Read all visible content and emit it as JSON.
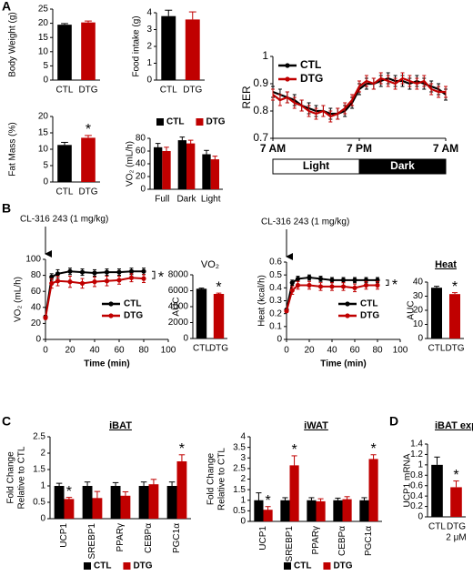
{
  "panel_labels": [
    "A",
    "B",
    "C",
    "D"
  ],
  "chart_data": [
    {
      "type": "bar",
      "y_label": "Body Weight (g)",
      "categories": [
        "CTL",
        "DTG"
      ],
      "values": [
        19.5,
        20.3
      ],
      "errors": [
        0.4,
        0.5
      ],
      "colors": [
        "#000000",
        "#c00000"
      ],
      "ylim": [
        0,
        25
      ],
      "yticks": [
        0,
        5,
        10,
        15,
        20,
        25
      ]
    },
    {
      "type": "bar",
      "y_label": "Food intake (g)",
      "categories": [
        "CTL",
        "DTG"
      ],
      "values": [
        3.8,
        3.6
      ],
      "errors": [
        0.35,
        0.45
      ],
      "colors": [
        "#000000",
        "#c00000"
      ],
      "ylim": [
        0,
        4
      ],
      "yticks": [
        0,
        1,
        2,
        3,
        4
      ]
    },
    {
      "type": "line",
      "y_label": "RER",
      "x": [
        0,
        1,
        2,
        3,
        4,
        5,
        6,
        7,
        8,
        9,
        10,
        11,
        12,
        13,
        14,
        15,
        16,
        17,
        18,
        19,
        20,
        21,
        22,
        23,
        24
      ],
      "xlim": [
        0,
        24
      ],
      "xticks": [
        {
          "value": 0,
          "label": "7 AM"
        },
        {
          "value": 12,
          "label": "7 PM"
        },
        {
          "value": 24,
          "label": "7 AM"
        }
      ],
      "ylim": [
        0.7,
        1.0
      ],
      "yticks": [
        0.7,
        0.8,
        0.9,
        1
      ],
      "series": [
        {
          "name": "CTL",
          "color": "#000000",
          "values": [
            0.87,
            0.86,
            0.85,
            0.84,
            0.82,
            0.81,
            0.8,
            0.8,
            0.79,
            0.79,
            0.8,
            0.83,
            0.88,
            0.9,
            0.9,
            0.91,
            0.92,
            0.91,
            0.91,
            0.9,
            0.91,
            0.9,
            0.89,
            0.88,
            0.86
          ],
          "errors": [
            0.02,
            0.02,
            0.02,
            0.02,
            0.02,
            0.02,
            0.02,
            0.02,
            0.02,
            0.02,
            0.02,
            0.02,
            0.02,
            0.02,
            0.02,
            0.02,
            0.02,
            0.02,
            0.02,
            0.02,
            0.02,
            0.02,
            0.02,
            0.02,
            0.02
          ]
        },
        {
          "name": "DTG",
          "color": "#c00000",
          "values": [
            0.86,
            0.84,
            0.85,
            0.83,
            0.82,
            0.8,
            0.79,
            0.8,
            0.78,
            0.79,
            0.81,
            0.84,
            0.89,
            0.91,
            0.9,
            0.92,
            0.91,
            0.9,
            0.92,
            0.91,
            0.9,
            0.91,
            0.88,
            0.87,
            0.87
          ],
          "errors": [
            0.02,
            0.02,
            0.02,
            0.02,
            0.02,
            0.02,
            0.02,
            0.02,
            0.02,
            0.02,
            0.02,
            0.02,
            0.02,
            0.02,
            0.02,
            0.02,
            0.02,
            0.02,
            0.02,
            0.02,
            0.02,
            0.02,
            0.02,
            0.02,
            0.02
          ]
        }
      ],
      "phases": [
        {
          "label": "Light",
          "start": 0,
          "end": 12,
          "color": "#ffffff"
        },
        {
          "label": "Dark",
          "start": 12,
          "end": 24,
          "color": "#000000"
        }
      ]
    },
    {
      "type": "bar",
      "y_label": "Fat Mass (%)",
      "categories": [
        "CTL",
        "DTG"
      ],
      "values": [
        11.3,
        13.5
      ],
      "errors": [
        0.8,
        0.7
      ],
      "colors": [
        "#000000",
        "#c00000"
      ],
      "significant": [
        false,
        true
      ],
      "significance_mark": "*",
      "ylim": [
        0,
        20
      ],
      "yticks": [
        0,
        5,
        10,
        15,
        20
      ]
    },
    {
      "type": "grouped_bar",
      "y_label": "VO₂ (mL/h)",
      "categories": [
        "Full",
        "Dark",
        "Light"
      ],
      "ylim": [
        0,
        80
      ],
      "yticks": [
        0,
        20,
        40,
        60,
        80
      ],
      "series": [
        {
          "name": "CTL",
          "color": "#000000",
          "values": [
            66,
            77,
            55
          ],
          "errors": [
            6,
            5,
            6
          ]
        },
        {
          "name": "DTG",
          "color": "#c00000",
          "values": [
            60,
            72,
            47
          ],
          "errors": [
            6,
            5,
            5
          ]
        }
      ]
    },
    {
      "type": "line",
      "y_label": "VO₂ (mL/h)",
      "x_label": "Time (min)",
      "x": [
        0,
        5,
        10,
        20,
        30,
        40,
        50,
        60,
        70,
        80
      ],
      "xlim": [
        0,
        100
      ],
      "xticks": [
        0,
        20,
        40,
        60,
        80,
        100
      ],
      "ylim": [
        0,
        100
      ],
      "yticks": [
        0,
        20,
        40,
        60,
        80,
        100
      ],
      "series": [
        {
          "name": "CTL",
          "color": "#000000",
          "values": [
            28,
            78,
            82,
            85,
            84,
            83,
            84,
            84,
            85,
            85
          ],
          "errors": [
            2,
            4,
            5,
            4,
            4,
            4,
            4,
            4,
            4,
            4
          ]
        },
        {
          "name": "DTG",
          "color": "#c00000",
          "values": [
            27,
            70,
            73,
            72,
            70,
            72,
            73,
            74,
            77,
            76
          ],
          "errors": [
            2,
            6,
            6,
            7,
            6,
            6,
            6,
            5,
            5,
            5
          ]
        }
      ],
      "injection": {
        "label": "CL-316 243 (1 mg/kg)",
        "x": 0
      },
      "significant": true,
      "significance_mark": "*"
    },
    {
      "type": "bar",
      "title": "VO₂",
      "y_label": "AUC",
      "categories": [
        "CTL",
        "DTG"
      ],
      "values": [
        6250,
        5600
      ],
      "errors": [
        80,
        100
      ],
      "colors": [
        "#000000",
        "#c00000"
      ],
      "significant": [
        false,
        true
      ],
      "significance_mark": "*",
      "ylim": [
        0,
        8000
      ],
      "yticks": [
        0,
        2000,
        4000,
        6000,
        8000
      ]
    },
    {
      "type": "line",
      "y_label": "Heat (kcal/h)",
      "x_label": "Time (min)",
      "x": [
        0,
        5,
        10,
        20,
        30,
        40,
        50,
        60,
        70,
        80
      ],
      "xlim": [
        0,
        100
      ],
      "xticks": [
        0,
        20,
        40,
        60,
        80,
        100
      ],
      "ylim": [
        0,
        0.6
      ],
      "yticks": [
        0,
        0.1,
        0.2,
        0.3,
        0.4,
        0.5,
        0.6
      ],
      "series": [
        {
          "name": "CTL",
          "color": "#000000",
          "values": [
            0.23,
            0.44,
            0.47,
            0.48,
            0.47,
            0.46,
            0.46,
            0.46,
            0.46,
            0.46
          ],
          "errors": [
            0.01,
            0.02,
            0.02,
            0.02,
            0.02,
            0.02,
            0.02,
            0.02,
            0.02,
            0.02
          ]
        },
        {
          "name": "DTG",
          "color": "#c00000",
          "values": [
            0.22,
            0.38,
            0.42,
            0.42,
            0.41,
            0.41,
            0.41,
            0.4,
            0.42,
            0.42
          ],
          "errors": [
            0.01,
            0.03,
            0.03,
            0.03,
            0.03,
            0.03,
            0.03,
            0.03,
            0.03,
            0.03
          ]
        }
      ],
      "injection": {
        "label": "CL-316 243 (1 mg/kg)",
        "x": 0
      },
      "significant": true,
      "significance_mark": "*"
    },
    {
      "type": "bar",
      "title": "Heat",
      "y_label": "AUC",
      "categories": [
        "CTL",
        "DTG"
      ],
      "values": [
        36,
        31.5
      ],
      "errors": [
        1,
        1
      ],
      "colors": [
        "#000000",
        "#c00000"
      ],
      "significant": [
        false,
        true
      ],
      "significance_mark": "*",
      "ylim": [
        0,
        40
      ],
      "yticks": [
        0,
        10,
        20,
        30,
        40
      ]
    },
    {
      "type": "grouped_bar",
      "title": "iBAT",
      "y_label": [
        "Fold Change",
        "Relative to CTL"
      ],
      "categories": [
        "UCP1",
        "SREBP1",
        "PPARγ",
        "CEBPα",
        "PGC1α"
      ],
      "ylim": [
        0,
        2.5
      ],
      "yticks": [
        0,
        0.5,
        1,
        1.5,
        2,
        2.5
      ],
      "significance_mark": "*",
      "series": [
        {
          "name": "CTL",
          "color": "#000000",
          "values": [
            1,
            1,
            1,
            1,
            1
          ],
          "errors": [
            0.08,
            0.12,
            0.1,
            0.12,
            0.12
          ]
        },
        {
          "name": "DTG",
          "color": "#c00000",
          "values": [
            0.6,
            0.63,
            0.7,
            1.05,
            1.75
          ],
          "errors": [
            0.05,
            0.2,
            0.12,
            0.15,
            0.2
          ],
          "significant": [
            true,
            false,
            false,
            false,
            true
          ]
        }
      ]
    },
    {
      "type": "grouped_bar",
      "title": "iWAT",
      "y_label": [
        "Fold Change",
        "Relative to CTL"
      ],
      "categories": [
        "UCP1",
        "SREBP1",
        "PPARγ",
        "CEBPα",
        "PGC1α"
      ],
      "ylim": [
        0,
        4
      ],
      "yticks": [
        0,
        0.5,
        1,
        1.5,
        2,
        2.5,
        3,
        3.5,
        4
      ],
      "significance_mark": "*",
      "series": [
        {
          "name": "CTL",
          "color": "#000000",
          "values": [
            1,
            1,
            1,
            1,
            1
          ],
          "errors": [
            0.35,
            0.12,
            0.12,
            0.1,
            0.12
          ]
        },
        {
          "name": "DTG",
          "color": "#c00000",
          "values": [
            0.55,
            2.65,
            0.95,
            1.05,
            2.95
          ],
          "errors": [
            0.15,
            0.45,
            0.12,
            0.12,
            0.2
          ],
          "significant": [
            true,
            true,
            false,
            false,
            true
          ]
        }
      ]
    },
    {
      "type": "bar",
      "title": "iBAT explant",
      "y_label": "UCP1 mRNA",
      "categories": [
        "CTL",
        "DTG"
      ],
      "annotation": "2 μM",
      "values": [
        1.0,
        0.57
      ],
      "errors": [
        0.15,
        0.12
      ],
      "colors": [
        "#000000",
        "#c00000"
      ],
      "significant": [
        false,
        true
      ],
      "significance_mark": "*",
      "ylim": [
        0,
        1.4
      ],
      "yticks": [
        0,
        0.2,
        0.4,
        0.6,
        0.8,
        1,
        1.2,
        1.4
      ]
    }
  ]
}
